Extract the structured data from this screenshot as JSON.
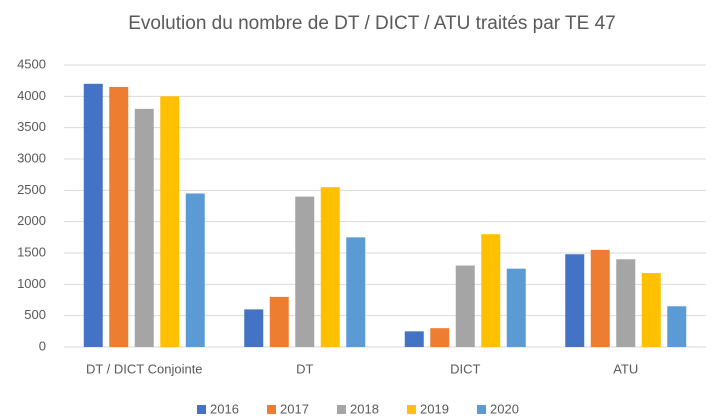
{
  "chart_data": {
    "type": "bar",
    "title": "Evolution du nombre de DT / DICT / ATU traités par TE 47",
    "categories": [
      "DT / DICT Conjointe",
      "DT",
      "DICT",
      "ATU"
    ],
    "series": [
      {
        "name": "2016",
        "color": "#4472c4",
        "values": [
          4200,
          600,
          250,
          1480
        ]
      },
      {
        "name": "2017",
        "color": "#ed7d31",
        "values": [
          4150,
          800,
          300,
          1550
        ]
      },
      {
        "name": "2018",
        "color": "#a5a5a5",
        "values": [
          3800,
          2400,
          1300,
          1400
        ]
      },
      {
        "name": "2019",
        "color": "#ffc000",
        "values": [
          4000,
          2550,
          1800,
          1180
        ]
      },
      {
        "name": "2020",
        "color": "#5b9bd5",
        "values": [
          2450,
          1750,
          1250,
          650
        ]
      }
    ],
    "ylim": [
      0,
      4500
    ],
    "yticks": [
      0,
      500,
      1000,
      1500,
      2000,
      2500,
      3000,
      3500,
      4000,
      4500
    ],
    "grid": true,
    "legend": "bottom"
  }
}
